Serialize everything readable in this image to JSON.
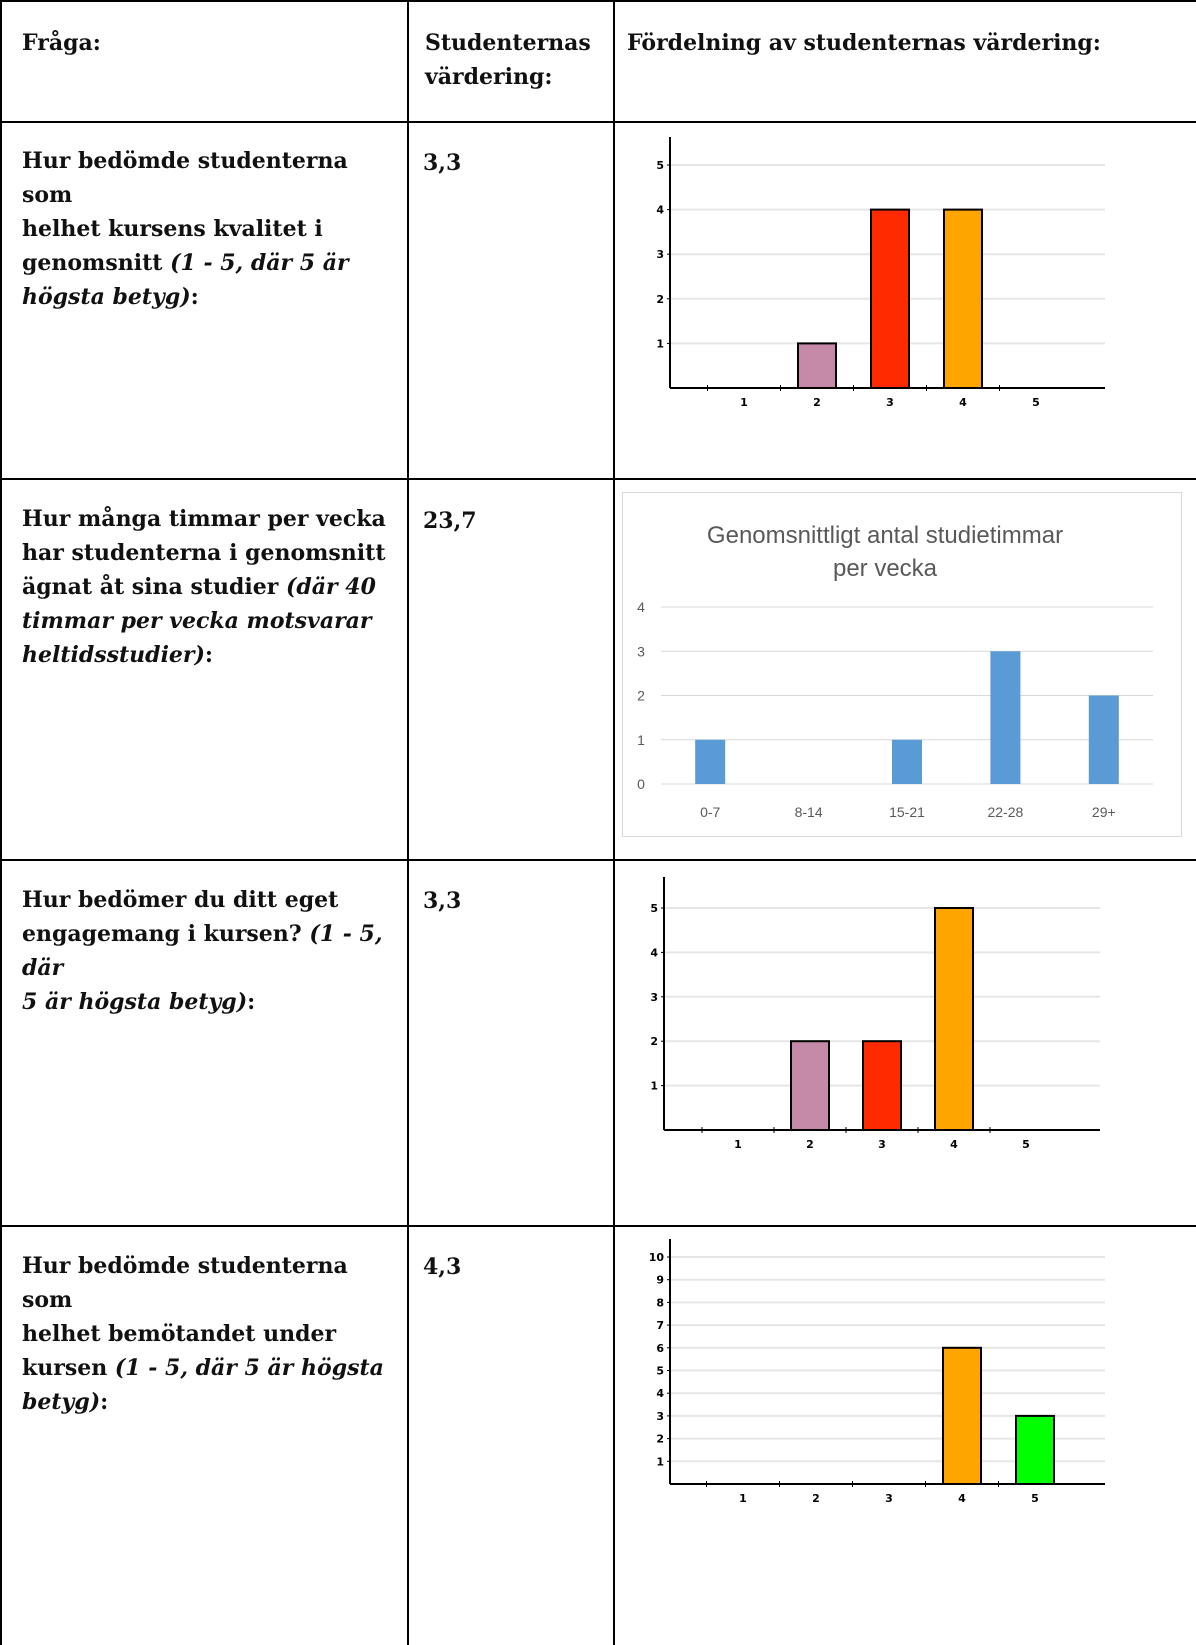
{
  "header": {
    "col1": "Fråga:",
    "col2_line1": "Studenternas",
    "col2_line2": "värdering:",
    "col3": "Fördelning av studenternas värdering:"
  },
  "rows": [
    {
      "question_lines": [
        "Hur bedömde studenterna som",
        "helhet kursens kvalitet i",
        "genomsnitt "
      ],
      "question_italic_lines": [
        "(1 - 5, där 5 är",
        "högsta betyg)"
      ],
      "value": "3,3"
    },
    {
      "question_lines": [
        "Hur många timmar per vecka",
        "har studenterna i genomsnitt",
        "ägnat åt sina studier "
      ],
      "question_italic_lines": [
        "(där 40",
        "timmar per vecka motsvarar",
        "heltidsstudier)"
      ],
      "value": "23,7"
    },
    {
      "question_lines": [
        "Hur bedömer du ditt eget",
        "engagemang i kursen? "
      ],
      "question_italic_lines": [
        "(1 - 5, där",
        "5 är högsta betyg)"
      ],
      "value": "3,3"
    },
    {
      "question_lines": [
        "Hur bedömde studenterna som",
        "helhet bemötandet under",
        "kursen "
      ],
      "question_italic_lines": [
        "(1 - 5, där 5 är högsta",
        "betyg)"
      ],
      "value": "4,3"
    }
  ],
  "chart_data": [
    {
      "type": "bar",
      "categories": [
        "1",
        "2",
        "3",
        "4",
        "5"
      ],
      "values": [
        0,
        1,
        4,
        4,
        0
      ],
      "colors": [
        "#c48aa8",
        "#c48aa8",
        "#ff2a00",
        "#ffa500",
        "#00ff00"
      ],
      "ylim": [
        0,
        5
      ],
      "yticks": [
        "1",
        "2",
        "3",
        "4",
        "5"
      ],
      "grid": true
    },
    {
      "type": "bar",
      "title_line1": "Genomsnittligt antal studietimmar",
      "title_line2": "per vecka",
      "categories": [
        "0-7",
        "8-14",
        "15-21",
        "22-28",
        "29+"
      ],
      "values": [
        1,
        0,
        1,
        3,
        2
      ],
      "color": "#5b9bd5",
      "ylim": [
        0,
        4
      ],
      "yticks": [
        "0",
        "1",
        "2",
        "3",
        "4"
      ],
      "grid": true
    },
    {
      "type": "bar",
      "categories": [
        "1",
        "2",
        "3",
        "4",
        "5"
      ],
      "values": [
        0,
        2,
        2,
        5,
        0
      ],
      "colors": [
        "#c48aa8",
        "#c48aa8",
        "#ff2a00",
        "#ffa500",
        "#00ff00"
      ],
      "ylim": [
        0,
        5
      ],
      "yticks": [
        "1",
        "2",
        "3",
        "4",
        "5"
      ],
      "grid": true
    },
    {
      "type": "bar",
      "categories": [
        "1",
        "2",
        "3",
        "4",
        "5"
      ],
      "values": [
        0,
        0,
        0,
        6,
        3
      ],
      "colors": [
        "#c48aa8",
        "#c48aa8",
        "#ff2a00",
        "#ffa500",
        "#00ff00"
      ],
      "ylim": [
        0,
        10
      ],
      "yticks": [
        "1",
        "2",
        "3",
        "4",
        "5",
        "6",
        "7",
        "8",
        "9",
        "10"
      ],
      "grid": true
    }
  ]
}
